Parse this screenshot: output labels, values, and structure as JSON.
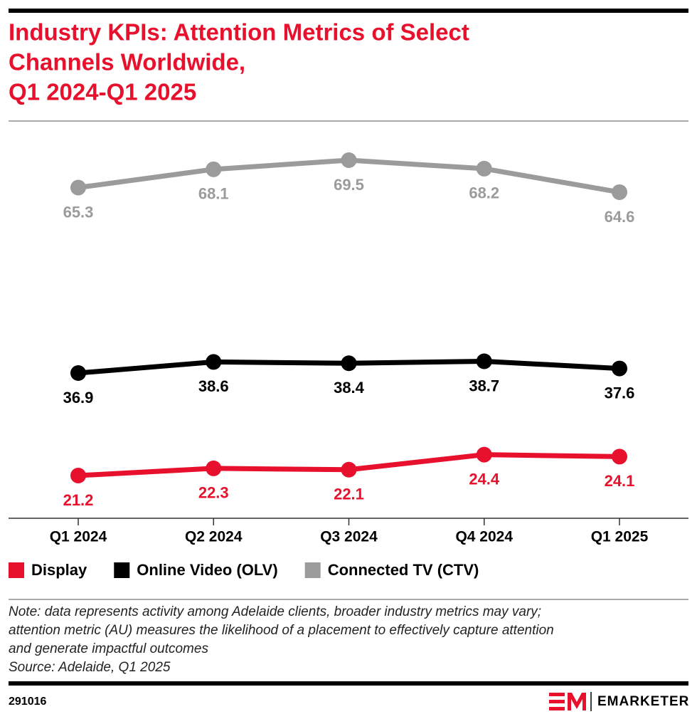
{
  "chart_data": {
    "type": "line",
    "title": [
      "Industry KPIs: Attention Metrics of Select",
      "Channels Worldwide,",
      "Q1 2024-Q1 2025"
    ],
    "categories": [
      "Q1 2024",
      "Q2 2024",
      "Q3 2024",
      "Q4 2024",
      "Q1 2025"
    ],
    "series": [
      {
        "name": "Display",
        "color": "#e8112d",
        "values": [
          21.2,
          22.3,
          22.1,
          24.4,
          24.1
        ]
      },
      {
        "name": "Online Video (OLV)",
        "color": "#000000",
        "values": [
          36.9,
          38.6,
          38.4,
          38.7,
          37.6
        ]
      },
      {
        "name": "Connected TV (CTV)",
        "color": "#9b9b9b",
        "values": [
          65.3,
          68.1,
          69.5,
          68.2,
          64.6
        ]
      }
    ],
    "note": [
      "Note: data represents activity among Adelaide clients, broader industry metrics may vary;",
      "attention metric (AU) measures the likelihood of a placement to effectively capture attention",
      "and generate impactful outcomes",
      "Source: Adelaide, Q1 2025"
    ],
    "chart_id": "291016",
    "brand": "EMARKETER"
  }
}
